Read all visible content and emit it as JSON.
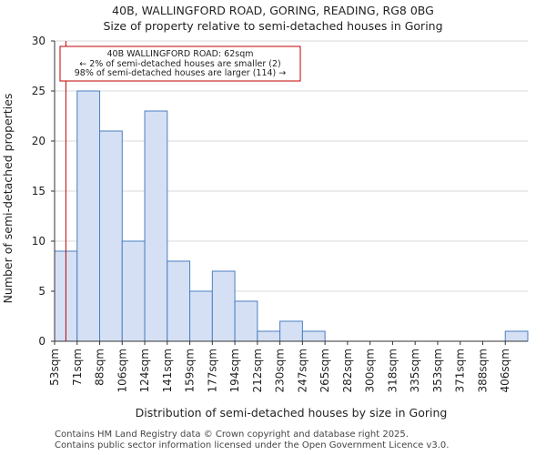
{
  "chart_data": {
    "type": "bar",
    "title": "40B, WALLINGFORD ROAD, GORING, READING, RG8 0BG",
    "subtitle": "Size of property relative to semi-detached houses in Goring",
    "xlabel": "Distribution of semi-detached houses by size in Goring",
    "ylabel": "Number of semi-detached properties",
    "categories": [
      "53sqm",
      "71sqm",
      "88sqm",
      "106sqm",
      "124sqm",
      "141sqm",
      "159sqm",
      "177sqm",
      "194sqm",
      "212sqm",
      "230sqm",
      "247sqm",
      "265sqm",
      "282sqm",
      "300sqm",
      "318sqm",
      "335sqm",
      "353sqm",
      "371sqm",
      "388sqm",
      "406sqm"
    ],
    "bin_edges": [
      53,
      71,
      88,
      106,
      124,
      141,
      159,
      177,
      194,
      212,
      230,
      247,
      265,
      282,
      300,
      318,
      335,
      353,
      371,
      388,
      406
    ],
    "values": [
      9,
      25,
      21,
      10,
      23,
      8,
      5,
      7,
      4,
      1,
      2,
      1,
      0,
      0,
      0,
      0,
      0,
      0,
      0,
      0,
      1
    ],
    "ylim": [
      0,
      30
    ],
    "yticks": [
      0,
      5,
      10,
      15,
      20,
      25,
      30
    ],
    "grid": true,
    "bar_color": "#d6e0f5",
    "bar_edge_color": "#4a7fc0",
    "marker": {
      "value": 62,
      "color": "#c00000",
      "label_lines": [
        "40B WALLINGFORD ROAD: 62sqm",
        "← 2% of semi-detached houses are smaller (2)",
        "98% of semi-detached houses are larger (114) →"
      ]
    }
  },
  "footer": {
    "line1": "Contains HM Land Registry data © Crown copyright and database right 2025.",
    "line2": "Contains public sector information licensed under the Open Government Licence v3.0."
  }
}
